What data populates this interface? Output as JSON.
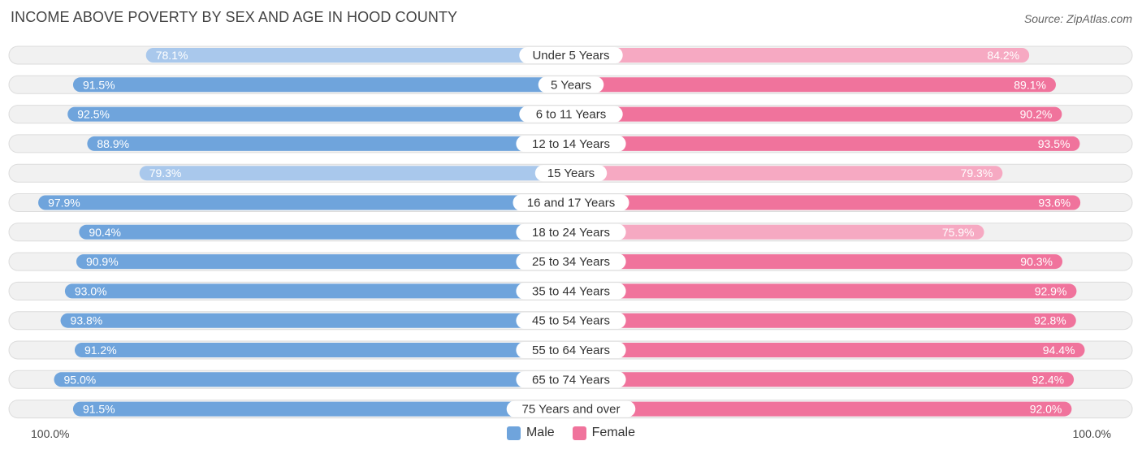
{
  "title": "INCOME ABOVE POVERTY BY SEX AND AGE IN HOOD COUNTY",
  "source": "Source: ZipAtlas.com",
  "colors": {
    "male_strong": "#6fa4dc",
    "male_light": "#a9c8ec",
    "female_strong": "#f0739c",
    "female_light": "#f6a9c2"
  },
  "chart_data": {
    "type": "bar",
    "orientation": "horizontal-diverging",
    "title": "INCOME ABOVE POVERTY BY SEX AND AGE IN HOOD COUNTY",
    "categories": [
      "Under 5 Years",
      "5 Years",
      "6 to 11 Years",
      "12 to 14 Years",
      "15 Years",
      "16 and 17 Years",
      "18 to 24 Years",
      "25 to 34 Years",
      "35 to 44 Years",
      "45 to 54 Years",
      "55 to 64 Years",
      "65 to 74 Years",
      "75 Years and over"
    ],
    "series": [
      {
        "name": "Male",
        "values": [
          78.1,
          91.5,
          92.5,
          88.9,
          79.3,
          97.9,
          90.4,
          90.9,
          93.0,
          93.8,
          91.2,
          95.0,
          91.5
        ],
        "labels": [
          "78.1%",
          "91.5%",
          "92.5%",
          "88.9%",
          "79.3%",
          "97.9%",
          "90.4%",
          "90.9%",
          "93.0%",
          "93.8%",
          "91.2%",
          "95.0%",
          "91.5%"
        ]
      },
      {
        "name": "Female",
        "values": [
          84.2,
          89.1,
          90.2,
          93.5,
          79.3,
          93.6,
          75.9,
          90.3,
          92.9,
          92.8,
          94.4,
          92.4,
          92.0
        ],
        "labels": [
          "84.2%",
          "89.1%",
          "90.2%",
          "93.5%",
          "79.3%",
          "93.6%",
          "75.9%",
          "90.3%",
          "92.9%",
          "92.8%",
          "94.4%",
          "92.4%",
          "92.0%"
        ]
      }
    ],
    "xlim": [
      0,
      100
    ],
    "axis_left_label": "100.0%",
    "axis_right_label": "100.0%",
    "legend": [
      "Male",
      "Female"
    ],
    "legend_position": "bottom-center"
  }
}
